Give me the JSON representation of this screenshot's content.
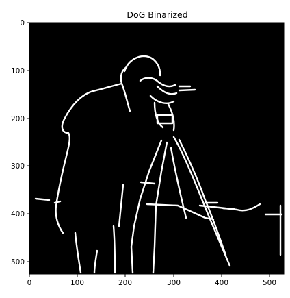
{
  "figure": {
    "title": "DoG Binarized",
    "image_subject": "Binarized difference-of-Gaussians edge map of a photographer with a tripod camera",
    "colors": {
      "background": "#000000",
      "edge": "#ffffff",
      "frame": "#000000"
    }
  },
  "axes": {
    "xlim": [
      0,
      530
    ],
    "ylim": [
      530,
      0
    ],
    "x_ticks": [
      "0",
      "100",
      "200",
      "300",
      "400",
      "500"
    ],
    "y_ticks": [
      "0",
      "100",
      "200",
      "300",
      "400",
      "500"
    ]
  }
}
